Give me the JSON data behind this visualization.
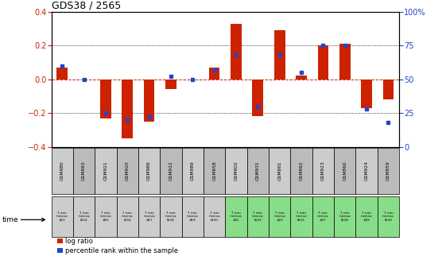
{
  "title": "GDS38 / 2565",
  "samples": [
    "GSM980",
    "GSM863",
    "GSM921",
    "GSM920",
    "GSM988",
    "GSM922",
    "GSM989",
    "GSM858",
    "GSM902",
    "GSM931",
    "GSM861",
    "GSM862",
    "GSM923",
    "GSM860",
    "GSM924",
    "GSM859"
  ],
  "time_labels": [
    "7 min\ninterva\n#13",
    "7 min\ninterva\nl#14",
    "7 min\ninterva\n#15",
    "7 min\ninterva\nl#16",
    "7 min\ninterva\n#17",
    "7 min\ninterva\nl#18",
    "7 min\ninterva\n#19",
    "7 min\ninterva\nl#20",
    "7 min\ninterva\n#21",
    "7 min\ninterva\nl#22",
    "7 min\ninterva\n#23",
    "7 min\ninterva\nl#25",
    "7 min\ninterva\n#27",
    "7 min\ninterva\nl#28",
    "7 min\ninterva\n#29",
    "7 min\ninterva\nl#30"
  ],
  "log_ratio": [
    0.07,
    0.0,
    -0.23,
    -0.35,
    -0.25,
    -0.06,
    0.0,
    0.07,
    0.33,
    -0.22,
    0.29,
    0.02,
    0.2,
    0.21,
    -0.17,
    -0.12
  ],
  "percentile": [
    60,
    50,
    25,
    20,
    22,
    52,
    50,
    57,
    68,
    30,
    68,
    55,
    75,
    75,
    28,
    18
  ],
  "ylim_left": [
    -0.4,
    0.4
  ],
  "ylim_right": [
    0,
    100
  ],
  "yticks_left": [
    -0.4,
    -0.2,
    0.0,
    0.2,
    0.4
  ],
  "yticks_right": [
    0,
    25,
    50,
    75,
    100
  ],
  "bar_color": "#cc2200",
  "dot_color": "#2244cc",
  "zero_line_color": "#cc2200",
  "sample_cell_color": "#cccccc",
  "sample_cell_alt_color": "#bbbbbb",
  "time_row_colors_gray": "#cccccc",
  "time_row_colors_green": "#88dd88",
  "n_gray": 8,
  "bg_color": "#ffffff"
}
